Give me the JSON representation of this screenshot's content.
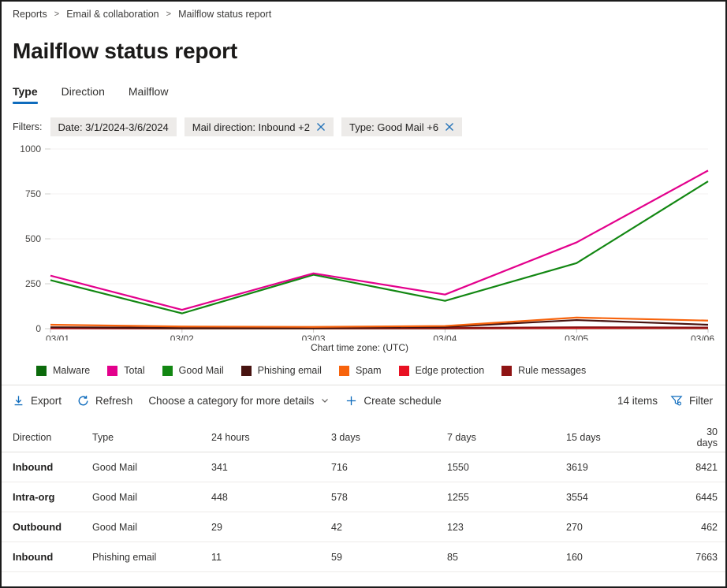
{
  "breadcrumb": {
    "separator": ">",
    "items": [
      "Reports",
      "Email & collaboration",
      "Mailflow status report"
    ]
  },
  "page": {
    "title": "Mailflow status report"
  },
  "tabs": [
    {
      "label": "Type",
      "active": true
    },
    {
      "label": "Direction",
      "active": false
    },
    {
      "label": "Mailflow",
      "active": false
    }
  ],
  "filters": {
    "label": "Filters:",
    "chips": [
      {
        "text": "Date: 3/1/2024-3/6/2024",
        "dismissible": false
      },
      {
        "text": "Mail direction: Inbound +2",
        "dismissible": true
      },
      {
        "text": "Type: Good Mail +6",
        "dismissible": true
      }
    ]
  },
  "chart_data": {
    "type": "line",
    "title": "",
    "xlabel": "",
    "ylabel": "",
    "x": [
      "03/01",
      "03/02",
      "03/03",
      "03/04",
      "03/05",
      "03/06"
    ],
    "ylim": [
      0,
      1000
    ],
    "yticks": [
      0,
      250,
      500,
      750,
      1000
    ],
    "grid": true,
    "legend_position": "bottom",
    "timezone_note": "Chart time zone: (UTC)",
    "series": [
      {
        "name": "Malware",
        "color": "#0b6a0b",
        "values": [
          2,
          1,
          1,
          1,
          2,
          2
        ]
      },
      {
        "name": "Total",
        "color": "#e3008c",
        "values": [
          295,
          105,
          308,
          190,
          480,
          880
        ]
      },
      {
        "name": "Good Mail",
        "color": "#128712",
        "values": [
          270,
          85,
          300,
          155,
          365,
          820
        ]
      },
      {
        "name": "Phishing email",
        "color": "#471310",
        "values": [
          8,
          4,
          4,
          10,
          48,
          22
        ]
      },
      {
        "name": "Spam",
        "color": "#f7630c",
        "values": [
          22,
          12,
          10,
          15,
          62,
          45
        ]
      },
      {
        "name": "Edge protection",
        "color": "#e81123",
        "values": [
          2,
          2,
          2,
          2,
          3,
          3
        ]
      },
      {
        "name": "Rule messages",
        "color": "#8f1414",
        "values": [
          6,
          4,
          3,
          4,
          8,
          6
        ]
      }
    ]
  },
  "toolbar": {
    "export_label": "Export",
    "refresh_label": "Refresh",
    "category_label": "Choose a category for more details",
    "create_schedule_label": "Create schedule",
    "items_count": "14 items",
    "filter_label": "Filter"
  },
  "table": {
    "columns": [
      "Direction",
      "Type",
      "24 hours",
      "3 days",
      "7 days",
      "15 days",
      "30 days"
    ],
    "rows": [
      {
        "direction": "Inbound",
        "type": "Good Mail",
        "values": [
          "341",
          "716",
          "1550",
          "3619",
          "8421"
        ]
      },
      {
        "direction": "Intra-org",
        "type": "Good Mail",
        "values": [
          "448",
          "578",
          "1255",
          "3554",
          "6445"
        ]
      },
      {
        "direction": "Outbound",
        "type": "Good Mail",
        "values": [
          "29",
          "42",
          "123",
          "270",
          "462"
        ]
      },
      {
        "direction": "Inbound",
        "type": "Phishing email",
        "values": [
          "11",
          "59",
          "85",
          "160",
          "7663"
        ]
      }
    ]
  },
  "colors": {
    "accent": "#0f6cbd",
    "icon_blue": "#0f6cbd",
    "grid_line": "#f3f2f1",
    "axis_line": "#e1dfdd"
  }
}
